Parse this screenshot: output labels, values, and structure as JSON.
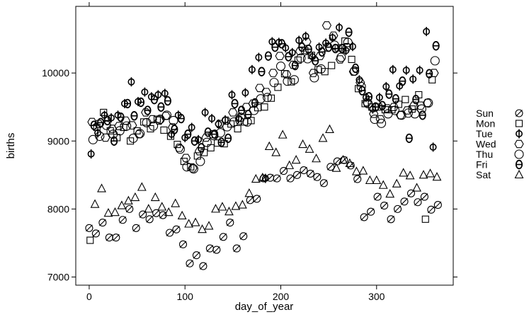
{
  "chart_data": {
    "type": "scatter",
    "title": "",
    "xlabel": "day_of_year",
    "ylabel": "births",
    "xlim": [
      -14,
      380
    ],
    "ylim": [
      6880,
      10980
    ],
    "x_ticks": [
      0,
      100,
      200,
      300
    ],
    "y_ticks": [
      7000,
      8000,
      9000,
      10000
    ],
    "legend_position": "right",
    "grid": false,
    "series": [
      {
        "name": "Sun",
        "marker": "slashed-circle",
        "x": [
          0,
          7,
          14,
          21,
          28,
          35,
          42,
          49,
          56,
          63,
          70,
          77,
          84,
          91,
          98,
          105,
          112,
          119,
          126,
          133,
          140,
          147,
          154,
          161,
          168,
          175,
          182,
          189,
          196,
          203,
          210,
          217,
          224,
          231,
          238,
          245,
          252,
          259,
          266,
          273,
          280,
          287,
          294,
          301,
          308,
          315,
          322,
          329,
          336,
          343,
          350,
          357,
          364
        ],
        "y": [
          7720,
          7640,
          7800,
          7580,
          7580,
          7840,
          8000,
          7720,
          7920,
          7850,
          7940,
          7910,
          7650,
          7700,
          7480,
          7200,
          7320,
          7160,
          7420,
          7400,
          7590,
          7800,
          7420,
          7600,
          8130,
          8150,
          8450,
          8460,
          8450,
          8560,
          8450,
          8500,
          8570,
          8520,
          8470,
          8380,
          8620,
          8700,
          8720,
          8640,
          8440,
          7880,
          7960,
          8180,
          8050,
          7850,
          8000,
          8110,
          8230,
          8100,
          8180,
          7990,
          8060
        ]
      },
      {
        "name": "Mon",
        "marker": "square",
        "x": [
          1,
          8,
          15,
          22,
          29,
          36,
          43,
          50,
          57,
          64,
          71,
          78,
          85,
          92,
          99,
          106,
          113,
          120,
          127,
          134,
          141,
          148,
          155,
          162,
          169,
          176,
          183,
          190,
          197,
          204,
          211,
          218,
          225,
          232,
          239,
          246,
          253,
          260,
          267,
          274,
          281,
          288,
          295,
          302,
          309,
          316,
          323,
          330,
          337,
          344,
          351,
          358
        ],
        "y": [
          7540,
          9200,
          9420,
          9150,
          9050,
          9200,
          9000,
          9150,
          9280,
          9180,
          9320,
          9160,
          9070,
          8950,
          8700,
          8620,
          8780,
          8830,
          8900,
          8970,
          8960,
          9250,
          9180,
          9280,
          9300,
          9490,
          9500,
          9630,
          9790,
          9990,
          9870,
          10190,
          10330,
          10260,
          10050,
          10020,
          10110,
          10370,
          10470,
          10200,
          9770,
          9550,
          9500,
          9500,
          9460,
          9460,
          9540,
          9610,
          9470,
          9680,
          7850,
          9900
        ]
      },
      {
        "name": "Tue",
        "marker": "phi",
        "x": [
          2,
          9,
          16,
          23,
          30,
          37,
          44,
          51,
          58,
          65,
          72,
          79,
          86,
          93,
          100,
          107,
          114,
          121,
          128,
          135,
          142,
          149,
          156,
          163,
          170,
          177,
          184,
          191,
          198,
          205,
          212,
          219,
          226,
          233,
          240,
          247,
          254,
          261,
          268,
          275,
          282,
          289,
          296,
          303,
          310,
          317,
          324,
          331,
          338,
          345,
          352,
          359
        ],
        "y": [
          8810,
          9120,
          9380,
          9340,
          9380,
          9550,
          9870,
          9580,
          9720,
          9650,
          9680,
          9700,
          9100,
          9380,
          9050,
          9200,
          9020,
          9420,
          9330,
          9250,
          9310,
          9680,
          9330,
          9710,
          10050,
          10230,
          8450,
          10460,
          10450,
          10370,
          10300,
          10480,
          10540,
          10240,
          10380,
          10440,
          10520,
          10670,
          10330,
          10390,
          9900,
          9640,
          9470,
          9640,
          9800,
          10050,
          9810,
          10040,
          9910,
          10040,
          10610,
          8910
        ]
      },
      {
        "name": "Wed",
        "marker": "hexagon",
        "x": [
          3,
          10,
          17,
          24,
          31,
          38,
          45,
          52,
          59,
          66,
          73,
          80,
          87,
          94,
          101,
          108,
          115,
          122,
          129,
          136,
          143,
          150,
          157,
          164,
          171,
          178,
          185,
          192,
          199,
          206,
          213,
          220,
          227,
          234,
          241,
          248,
          255,
          262,
          269,
          276,
          283,
          290,
          297,
          304,
          311,
          318,
          325,
          332,
          339,
          346,
          353,
          360
        ],
        "y": [
          9280,
          9250,
          9050,
          9180,
          9220,
          9300,
          9230,
          9100,
          9420,
          9320,
          9300,
          9370,
          9200,
          8900,
          8750,
          8600,
          8850,
          9050,
          9100,
          9250,
          9300,
          9420,
          9300,
          9500,
          9550,
          9780,
          9720,
          10000,
          10250,
          9980,
          10120,
          10320,
          10460,
          10000,
          10250,
          10700,
          10550,
          10200,
          10380,
          10020,
          9860,
          9570,
          9400,
          9320,
          9480,
          9500,
          9380,
          9450,
          9520,
          9520,
          9560,
          10000
        ]
      },
      {
        "name": "Thu",
        "marker": "circle",
        "x": [
          4,
          11,
          18,
          25,
          32,
          39,
          46,
          53,
          60,
          67,
          74,
          81,
          88,
          95,
          102,
          109,
          116,
          123,
          130,
          137,
          144,
          151,
          158,
          165,
          172,
          179,
          186,
          193,
          200,
          207,
          214,
          221,
          228,
          235,
          242,
          249,
          256,
          263,
          270,
          277,
          284,
          291,
          298,
          305,
          312,
          319,
          326,
          333,
          340,
          347,
          354,
          361
        ],
        "y": [
          9020,
          9070,
          9230,
          9100,
          9150,
          9220,
          9040,
          9110,
          9270,
          9220,
          9320,
          9380,
          9300,
          8880,
          8620,
          8590,
          8700,
          8980,
          9080,
          9120,
          9210,
          9280,
          9350,
          9280,
          9450,
          9620,
          9640,
          9860,
          10100,
          9880,
          9900,
          10220,
          10210,
          9930,
          10060,
          10380,
          10410,
          10230,
          10450,
          10030,
          9800,
          9550,
          9320,
          9260,
          9400,
          9450,
          9380,
          9410,
          9400,
          9470,
          9560,
          10180
        ]
      },
      {
        "name": "Fri",
        "marker": "theta",
        "x": [
          5,
          12,
          19,
          26,
          33,
          40,
          47,
          54,
          61,
          68,
          75,
          82,
          89,
          96,
          103,
          110,
          117,
          124,
          131,
          138,
          145,
          152,
          159,
          166,
          173,
          180,
          187,
          194,
          201,
          208,
          215,
          222,
          229,
          236,
          243,
          250,
          257,
          264,
          271,
          278,
          285,
          292,
          299,
          306,
          313,
          320,
          327,
          334,
          341,
          348,
          355,
          362
        ],
        "y": [
          9230,
          9270,
          9300,
          9000,
          9350,
          9550,
          9370,
          9570,
          9450,
          9610,
          9500,
          9590,
          9170,
          9330,
          9100,
          9000,
          8900,
          9130,
          9100,
          8980,
          9040,
          9550,
          9450,
          9390,
          9560,
          10020,
          10250,
          10380,
          10430,
          10240,
          10110,
          10380,
          10350,
          10180,
          10310,
          10380,
          10360,
          10360,
          10600,
          10070,
          9740,
          9650,
          9500,
          9520,
          9690,
          9620,
          9880,
          9040,
          9610,
          9380,
          9990,
          10400
        ]
      },
      {
        "name": "Sat",
        "marker": "triangle",
        "x": [
          6,
          13,
          20,
          27,
          34,
          41,
          48,
          55,
          62,
          69,
          76,
          83,
          90,
          97,
          104,
          111,
          118,
          125,
          132,
          139,
          146,
          153,
          160,
          167,
          174,
          181,
          188,
          195,
          202,
          209,
          216,
          223,
          230,
          237,
          244,
          251,
          258,
          265,
          272,
          279,
          286,
          293,
          300,
          307,
          314,
          321,
          328,
          335,
          342,
          349,
          356,
          363
        ],
        "y": [
          8070,
          8300,
          7940,
          7950,
          8050,
          8120,
          8170,
          8320,
          8000,
          8170,
          8030,
          7950,
          8080,
          7900,
          7780,
          7800,
          7700,
          7750,
          8000,
          8030,
          7960,
          8040,
          8060,
          8230,
          8440,
          8460,
          8920,
          8830,
          9090,
          8640,
          8720,
          8950,
          8880,
          8740,
          9040,
          9170,
          8600,
          8720,
          8670,
          8550,
          8560,
          8420,
          8420,
          8350,
          8220,
          8370,
          8530,
          8490,
          8310,
          8500,
          8520,
          8470
        ]
      }
    ]
  }
}
